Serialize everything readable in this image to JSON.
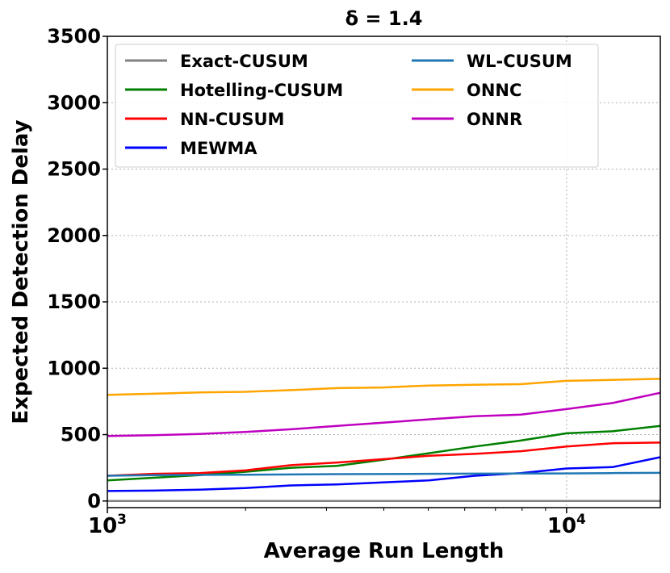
{
  "chart_data": {
    "type": "line",
    "title": "δ = 1.4",
    "xlabel": "Average Run Length",
    "ylabel": "Expected Detection Delay",
    "xscale": "log",
    "xlim": [
      1000,
      16000
    ],
    "ylim": [
      -50,
      3500
    ],
    "x_ticks": [
      {
        "value": 1000,
        "base": "10",
        "exp": "3"
      },
      {
        "value": 10000,
        "base": "10",
        "exp": "4"
      }
    ],
    "y_ticks": [
      "0",
      "500",
      "1000",
      "1500",
      "2000",
      "2500",
      "3000",
      "3500"
    ],
    "grid": true,
    "legend_position": "top",
    "x": [
      1000,
      1259,
      1585,
      1995,
      2512,
      3162,
      3981,
      5012,
      6310,
      7943,
      10000,
      12589,
      16000
    ],
    "series": [
      {
        "name": "Exact-CUSUM",
        "color": "#808080",
        "values": [
          0,
          0,
          0,
          0,
          0,
          0,
          0,
          0,
          0,
          0,
          0,
          0,
          0
        ]
      },
      {
        "name": "Hotelling-CUSUM",
        "color": "#008000",
        "values": [
          155,
          175,
          195,
          220,
          250,
          265,
          310,
          360,
          410,
          455,
          510,
          525,
          565
        ]
      },
      {
        "name": "NN-CUSUM",
        "color": "#ff0000",
        "values": [
          190,
          205,
          210,
          230,
          270,
          290,
          315,
          340,
          355,
          375,
          410,
          435,
          440
        ]
      },
      {
        "name": "MEWMA",
        "color": "#0000ff",
        "values": [
          75,
          78,
          85,
          97,
          117,
          125,
          140,
          155,
          190,
          210,
          245,
          255,
          330
        ]
      },
      {
        "name": "WL-CUSUM",
        "color": "#1f77b4",
        "values": [
          190,
          195,
          197,
          198,
          200,
          202,
          203,
          205,
          206,
          207,
          208,
          210,
          212
        ]
      },
      {
        "name": "ONNC",
        "color": "#ffa500",
        "values": [
          800,
          808,
          818,
          822,
          835,
          850,
          855,
          870,
          875,
          880,
          905,
          912,
          920
        ]
      },
      {
        "name": "ONNR",
        "color": "#bf00bf",
        "values": [
          490,
          495,
          505,
          520,
          540,
          565,
          590,
          615,
          638,
          650,
          692,
          738,
          815
        ]
      }
    ]
  }
}
